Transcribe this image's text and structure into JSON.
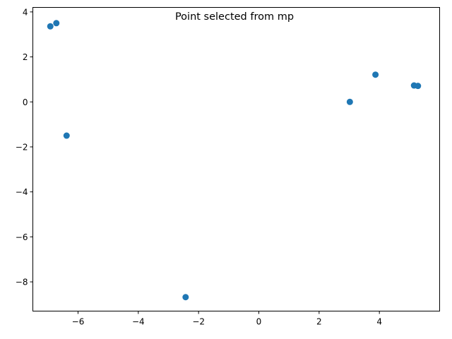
{
  "chart_data": {
    "type": "scatter",
    "title": "Point selected from mp",
    "xlabel": "",
    "ylabel": "",
    "xlim": [
      -7.5,
      6.0
    ],
    "ylim": [
      -9.3,
      4.2
    ],
    "xticks": [
      -6,
      -4,
      -2,
      0,
      2,
      4
    ],
    "yticks": [
      -8,
      -6,
      -4,
      -2,
      0,
      2,
      4
    ],
    "xtick_labels": [
      "−6",
      "−4",
      "−2",
      "0",
      "2",
      "4"
    ],
    "ytick_labels": [
      "−8",
      "−6",
      "−4",
      "−2",
      "0",
      "2",
      "4"
    ],
    "grid": false,
    "marker_color": "#1f77b4",
    "points": [
      {
        "x": -6.92,
        "y": 3.36
      },
      {
        "x": -6.72,
        "y": 3.5
      },
      {
        "x": -6.38,
        "y": -1.5
      },
      {
        "x": -2.43,
        "y": -8.68
      },
      {
        "x": 3.02,
        "y": 0.0
      },
      {
        "x": 3.87,
        "y": 1.21
      },
      {
        "x": 5.15,
        "y": 0.73
      },
      {
        "x": 5.28,
        "y": 0.71
      }
    ]
  }
}
